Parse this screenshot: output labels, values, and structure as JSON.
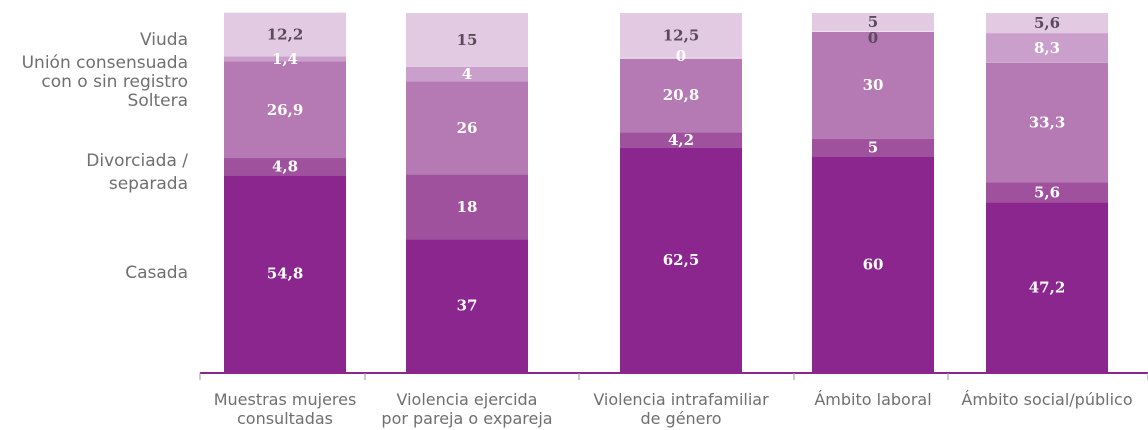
{
  "chart_data": {
    "type": "bar",
    "stacked": true,
    "percent_stacked": true,
    "categories": [
      [
        "Muestras mujeres",
        "consultadas"
      ],
      [
        "Violencia ejercida",
        "por pareja o expareja"
      ],
      [
        "Violencia intrafamiliar",
        "de género"
      ],
      [
        "Ámbito laboral"
      ],
      [
        "Ámbito social/público"
      ]
    ],
    "series": [
      {
        "name": "Casada",
        "color": "#8b268f",
        "label_color": "#ffffff",
        "values": [
          54.8,
          37,
          62.5,
          60,
          47.2
        ]
      },
      {
        "name": "Divorciada / separada",
        "color": "#a0519e",
        "label_color": "#ffffff",
        "values": [
          4.8,
          18,
          4.2,
          5,
          5.6
        ]
      },
      {
        "name": "Soltera",
        "color": "#b57ab4",
        "label_color": "#ffffff",
        "values": [
          26.9,
          26,
          20.8,
          30,
          33.3
        ]
      },
      {
        "name": "Unión consensuada con o sin registro",
        "color": "#cb9fcb",
        "label_color": "#ffffff",
        "values": [
          1.4,
          4,
          0,
          0,
          8.3
        ]
      },
      {
        "name": "Viuda",
        "color": "#e2cbe2",
        "label_color": "#5a4a5a",
        "values": [
          12.2,
          15,
          12.5,
          5,
          5.6
        ]
      }
    ],
    "legend": {
      "placement": "left",
      "entries": [
        {
          "lines": [
            "Viuda"
          ]
        },
        {
          "lines": [
            "Unión consensuada",
            "con o sin registro"
          ]
        },
        {
          "lines": [
            "Soltera"
          ]
        },
        {
          "lines": [
            "Divorciada /",
            "separada"
          ]
        },
        {
          "lines": [
            "Casada"
          ]
        }
      ]
    },
    "value_labels": [
      [
        "54,8",
        "4,8",
        "26,9",
        "1,4",
        "12,2"
      ],
      [
        "37",
        "18",
        "26",
        "4",
        "15"
      ],
      [
        "62,5",
        "4,2",
        "20,8",
        "0",
        "12,5"
      ],
      [
        "60",
        "5",
        "30",
        "0",
        "5"
      ],
      [
        "47,2",
        "5,6",
        "33,3",
        "8,3",
        "5,6"
      ]
    ],
    "ylim": [
      0,
      100
    ],
    "grid": false,
    "axis_color": "#8b268f"
  }
}
